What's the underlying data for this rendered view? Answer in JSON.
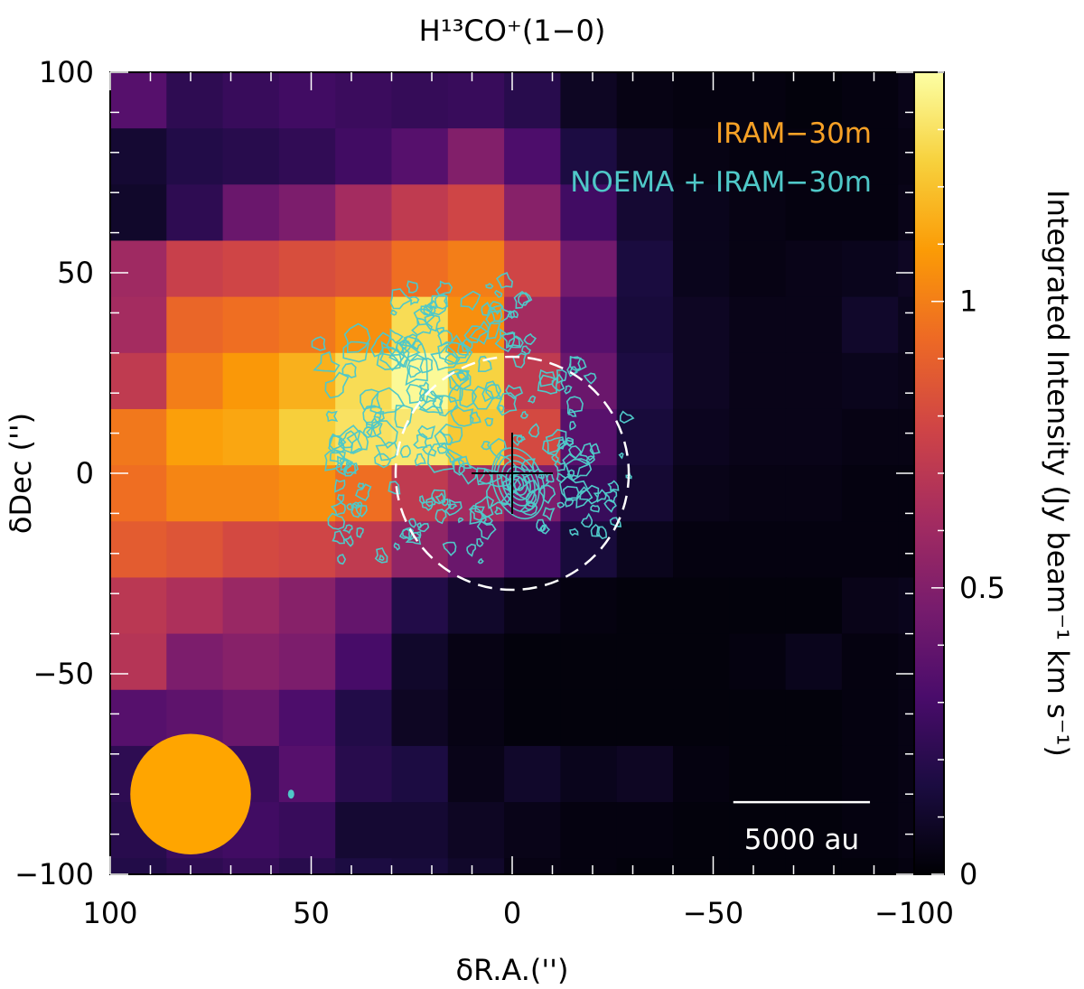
{
  "chart_data": {
    "type": "heatmap",
    "title": "H¹³CO⁺(1−0)",
    "xlabel": "δR.A.('')",
    "ylabel": "δDec ('')",
    "colorbar_label": "Integrated Intensity (Jy beam⁻¹ km s⁻¹)",
    "xlim": [
      100,
      -100
    ],
    "ylim": [
      -100,
      100
    ],
    "clim": [
      0,
      1.4
    ],
    "x_ticks": [
      100,
      50,
      0,
      -50,
      -100
    ],
    "x_tick_labels": [
      "100",
      "50",
      "0",
      "−50",
      "−100"
    ],
    "y_ticks": [
      100,
      50,
      0,
      -50,
      -100
    ],
    "y_tick_labels": [
      "100",
      "50",
      "0",
      "−50",
      "−100"
    ],
    "colorbar_ticks": [
      0,
      0.5,
      1
    ],
    "colorbar_tick_labels": [
      "0",
      "0.5",
      "1"
    ],
    "colormap": [
      "#000004",
      "#1b0c41",
      "#4a0c6b",
      "#781c6d",
      "#a52c60",
      "#cf4446",
      "#ed6925",
      "#fb9b06",
      "#f7d13d",
      "#fcffa4"
    ],
    "grid": {
      "x_start": 100,
      "y_start": 100,
      "step": 14,
      "values": [
        [
          0.35,
          0.22,
          0.25,
          0.28,
          0.26,
          0.24,
          0.25,
          0.2,
          0.08,
          0.04,
          0.03,
          0.03,
          0.02,
          0.03,
          0.05
        ],
        [
          0.12,
          0.18,
          0.2,
          0.23,
          0.28,
          0.35,
          0.5,
          0.32,
          0.16,
          0.08,
          0.04,
          0.03,
          0.03,
          0.03,
          0.04
        ],
        [
          0.1,
          0.22,
          0.42,
          0.48,
          0.62,
          0.72,
          0.78,
          0.52,
          0.28,
          0.12,
          0.06,
          0.04,
          0.03,
          0.03,
          0.05
        ],
        [
          0.6,
          0.75,
          0.78,
          0.82,
          0.85,
          0.95,
          1.0,
          0.78,
          0.45,
          0.15,
          0.06,
          0.04,
          0.05,
          0.06,
          0.08
        ],
        [
          0.62,
          0.92,
          0.95,
          0.98,
          1.05,
          1.28,
          1.05,
          0.62,
          0.35,
          0.14,
          0.08,
          0.05,
          0.05,
          0.1,
          0.06
        ],
        [
          0.72,
          1.0,
          1.08,
          1.15,
          1.28,
          1.38,
          1.25,
          0.72,
          0.42,
          0.16,
          0.08,
          0.05,
          0.05,
          0.06,
          0.05
        ],
        [
          0.98,
          1.1,
          1.12,
          1.24,
          1.3,
          1.32,
          1.22,
          0.8,
          0.36,
          0.14,
          0.07,
          0.05,
          0.05,
          0.04,
          0.04
        ],
        [
          0.95,
          1.02,
          1.02,
          1.05,
          0.95,
          0.72,
          0.62,
          0.48,
          0.25,
          0.12,
          0.05,
          0.04,
          0.04,
          0.03,
          0.03
        ],
        [
          0.88,
          0.85,
          0.8,
          0.78,
          0.72,
          0.55,
          0.42,
          0.28,
          0.14,
          0.06,
          0.03,
          0.03,
          0.03,
          0.03,
          0.03
        ],
        [
          0.7,
          0.65,
          0.58,
          0.52,
          0.4,
          0.18,
          0.1,
          0.05,
          0.03,
          0.02,
          0.02,
          0.02,
          0.02,
          0.05,
          0.06
        ],
        [
          0.68,
          0.48,
          0.52,
          0.48,
          0.3,
          0.1,
          0.04,
          0.02,
          0.02,
          0.02,
          0.02,
          0.03,
          0.06,
          0.03,
          0.04
        ],
        [
          0.35,
          0.38,
          0.42,
          0.32,
          0.18,
          0.08,
          0.04,
          0.02,
          0.02,
          0.02,
          0.02,
          0.02,
          0.02,
          0.03,
          0.04
        ],
        [
          0.22,
          0.3,
          0.26,
          0.35,
          0.2,
          0.16,
          0.05,
          0.1,
          0.06,
          0.08,
          0.03,
          0.02,
          0.02,
          0.03,
          0.04
        ],
        [
          0.2,
          0.26,
          0.28,
          0.25,
          0.12,
          0.12,
          0.08,
          0.05,
          0.03,
          0.03,
          0.02,
          0.02,
          0.02,
          0.03,
          0.04
        ],
        [
          0.18,
          0.22,
          0.24,
          0.2,
          0.16,
          0.14,
          0.1,
          0.04,
          0.03,
          0.02,
          0.02,
          0.02,
          0.02,
          0.02,
          0.03
        ]
      ]
    },
    "legend": [
      {
        "label": "IRAM−30m",
        "color": "#f7a126"
      },
      {
        "label": "NOEMA + IRAM−30m",
        "color": "#4fc8c8"
      }
    ],
    "contour_color": "#4fc8c8",
    "source_marker": {
      "x": 0,
      "y": 0
    },
    "dashed_circle": {
      "x": 0,
      "y": 0,
      "radius": 29
    },
    "beams": {
      "single_dish": {
        "x": 80,
        "y": -80,
        "radius": 15,
        "color": "#ffa500"
      },
      "interferometer": {
        "x": 55,
        "y": -80,
        "color": "#4fc8c8"
      }
    },
    "scale_bar": {
      "label": "5000 au",
      "x_from": -55,
      "x_to": -89,
      "y": -82
    }
  }
}
